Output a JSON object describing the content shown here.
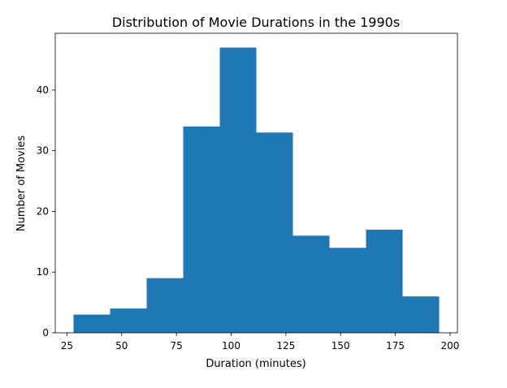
{
  "chart_data": {
    "type": "bar",
    "title": "Distribution of Movie Durations in the 1990s",
    "xlabel": "Duration (minutes)",
    "ylabel": "Number of Movies",
    "bins": [
      {
        "x0": 28.0,
        "x1": 44.7,
        "count": 3
      },
      {
        "x0": 44.7,
        "x1": 61.4,
        "count": 4
      },
      {
        "x0": 61.4,
        "x1": 78.1,
        "count": 9
      },
      {
        "x0": 78.1,
        "x1": 94.8,
        "count": 34
      },
      {
        "x0": 94.8,
        "x1": 111.5,
        "count": 47
      },
      {
        "x0": 111.5,
        "x1": 128.2,
        "count": 33
      },
      {
        "x0": 128.2,
        "x1": 144.9,
        "count": 16
      },
      {
        "x0": 144.9,
        "x1": 161.6,
        "count": 14
      },
      {
        "x0": 161.6,
        "x1": 178.3,
        "count": 17
      },
      {
        "x0": 178.3,
        "x1": 195.0,
        "count": 6
      }
    ],
    "xlim": [
      19.65,
      203.35
    ],
    "ylim": [
      0,
      49.35
    ],
    "x_ticks": [
      25,
      50,
      75,
      100,
      125,
      150,
      175,
      200
    ],
    "y_ticks": [
      0,
      10,
      20,
      30,
      40
    ],
    "bar_color": "#1f77b4",
    "grid": false
  }
}
